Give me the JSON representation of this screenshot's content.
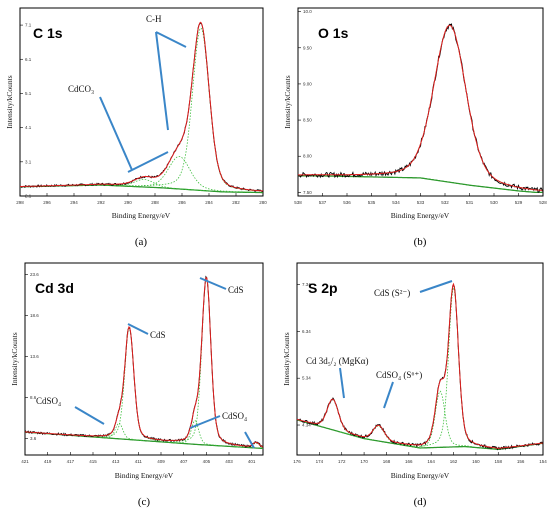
{
  "colors": {
    "raw": "#000000",
    "fit": "#e02020",
    "background": "#2e9a2e",
    "component": "#3fbf3f",
    "arrow": "#3a86c8"
  },
  "chart_data": [
    {
      "type": "line",
      "title": "C 1s",
      "panel_letter": "(a)",
      "xlabel": "Binding Energy/eV",
      "ylabel": "Intensity/kCounts",
      "xlim": [
        298,
        280
      ],
      "x_ticks": [
        "298",
        "296",
        "294",
        "292",
        "290",
        "288",
        "286",
        "284",
        "282",
        "280"
      ],
      "y_ticks": [
        "2.1",
        "3.1",
        "4.1",
        "5.1",
        "6.1",
        "7.1"
      ],
      "ylim": [
        2.1,
        7.6
      ],
      "annotations": [
        "C-H",
        "CdCO₃"
      ],
      "peaks": [
        {
          "center": 284.6,
          "height": 4.75,
          "width": 0.85
        },
        {
          "center": 286.2,
          "height": 0.95,
          "width": 1.1
        },
        {
          "center": 288.8,
          "height": 0.22,
          "width": 1.0
        }
      ],
      "background": [
        [
          298,
          2.37
        ],
        [
          292,
          2.42
        ],
        [
          287.5,
          2.34
        ],
        [
          283,
          2.22
        ],
        [
          280,
          2.2
        ]
      ],
      "grid": false
    },
    {
      "type": "line",
      "title": "O 1s",
      "panel_letter": "(b)",
      "xlabel": "Binding Energy/eV",
      "ylabel": "Intensity/kCounts",
      "xlim": [
        538,
        528
      ],
      "x_ticks": [
        "538",
        "537",
        "536",
        "535",
        "534",
        "533",
        "532",
        "531",
        "530",
        "529",
        "528"
      ],
      "y_ticks": [
        "7.50",
        "8.00",
        "8.50",
        "9.00",
        "9.50",
        "10.0"
      ],
      "ylim": [
        7.45,
        10.05
      ],
      "annotations": [],
      "peaks": [
        {
          "center": 531.8,
          "height": 2.17,
          "width": 0.9
        }
      ],
      "background": [
        [
          537.3,
          7.73
        ],
        [
          533,
          7.7
        ],
        [
          531,
          7.6
        ],
        [
          529,
          7.52
        ],
        [
          528.3,
          7.5
        ]
      ],
      "grid": false
    },
    {
      "type": "line",
      "title": "Cd 3d",
      "panel_letter": "(c)",
      "xlabel": "Binding Energy/eV",
      "ylabel": "Intensity/kCounts",
      "xlim": [
        421,
        400
      ],
      "x_ticks": [
        "421",
        "419",
        "417",
        "415",
        "413",
        "411",
        "409",
        "407",
        "405",
        "403",
        "401"
      ],
      "y_ticks": [
        "3.6",
        "8.6",
        "13.6",
        "18.6",
        "23.6"
      ],
      "ylim": [
        1.6,
        25.0
      ],
      "annotations": [
        "CdS",
        "CdS",
        "CdSO₄",
        "CdSO₄"
      ],
      "peaks": [
        {
          "center": 411.8,
          "height": 13.6,
          "width": 0.55
        },
        {
          "center": 405.0,
          "height": 20.3,
          "width": 0.55
        },
        {
          "center": 412.7,
          "height": 1.9,
          "width": 0.45
        },
        {
          "center": 406.0,
          "height": 2.9,
          "width": 0.45
        },
        {
          "center": 400.6,
          "height": 0.6,
          "width": 0.4
        }
      ],
      "background": [
        [
          421,
          4.4
        ],
        [
          415,
          3.8
        ],
        [
          410,
          3.3
        ],
        [
          406,
          2.9
        ],
        [
          400,
          2.4
        ]
      ],
      "grid": false
    },
    {
      "type": "line",
      "title": "S 2p",
      "panel_letter": "(d)",
      "xlabel": "Binding Energy/eV",
      "ylabel": "Intensity/kCounts",
      "xlim": [
        176,
        154
      ],
      "x_ticks": [
        "176",
        "174",
        "172",
        "170",
        "168",
        "166",
        "164",
        "162",
        "160",
        "158",
        "156",
        "154"
      ],
      "y_ticks": [
        "4.34",
        "5.34",
        "6.34",
        "7.34"
      ],
      "ylim": [
        3.7,
        7.8
      ],
      "annotations": [
        "CdS (S²⁻)",
        "Cd 3d₅/₂ (MgKα)",
        "CdSO₄ (S⁶⁺)"
      ],
      "peaks": [
        {
          "center": 162.0,
          "height": 3.4,
          "width": 0.6
        },
        {
          "center": 163.2,
          "height": 1.2,
          "width": 0.6
        },
        {
          "center": 172.8,
          "height": 0.65,
          "width": 0.7
        },
        {
          "center": 168.7,
          "height": 0.32,
          "width": 0.7
        }
      ],
      "background": [
        [
          176,
          4.45
        ],
        [
          170,
          4.05
        ],
        [
          165,
          3.85
        ],
        [
          161,
          3.88
        ],
        [
          158,
          3.82
        ],
        [
          154,
          3.95
        ]
      ],
      "grid": false
    }
  ]
}
